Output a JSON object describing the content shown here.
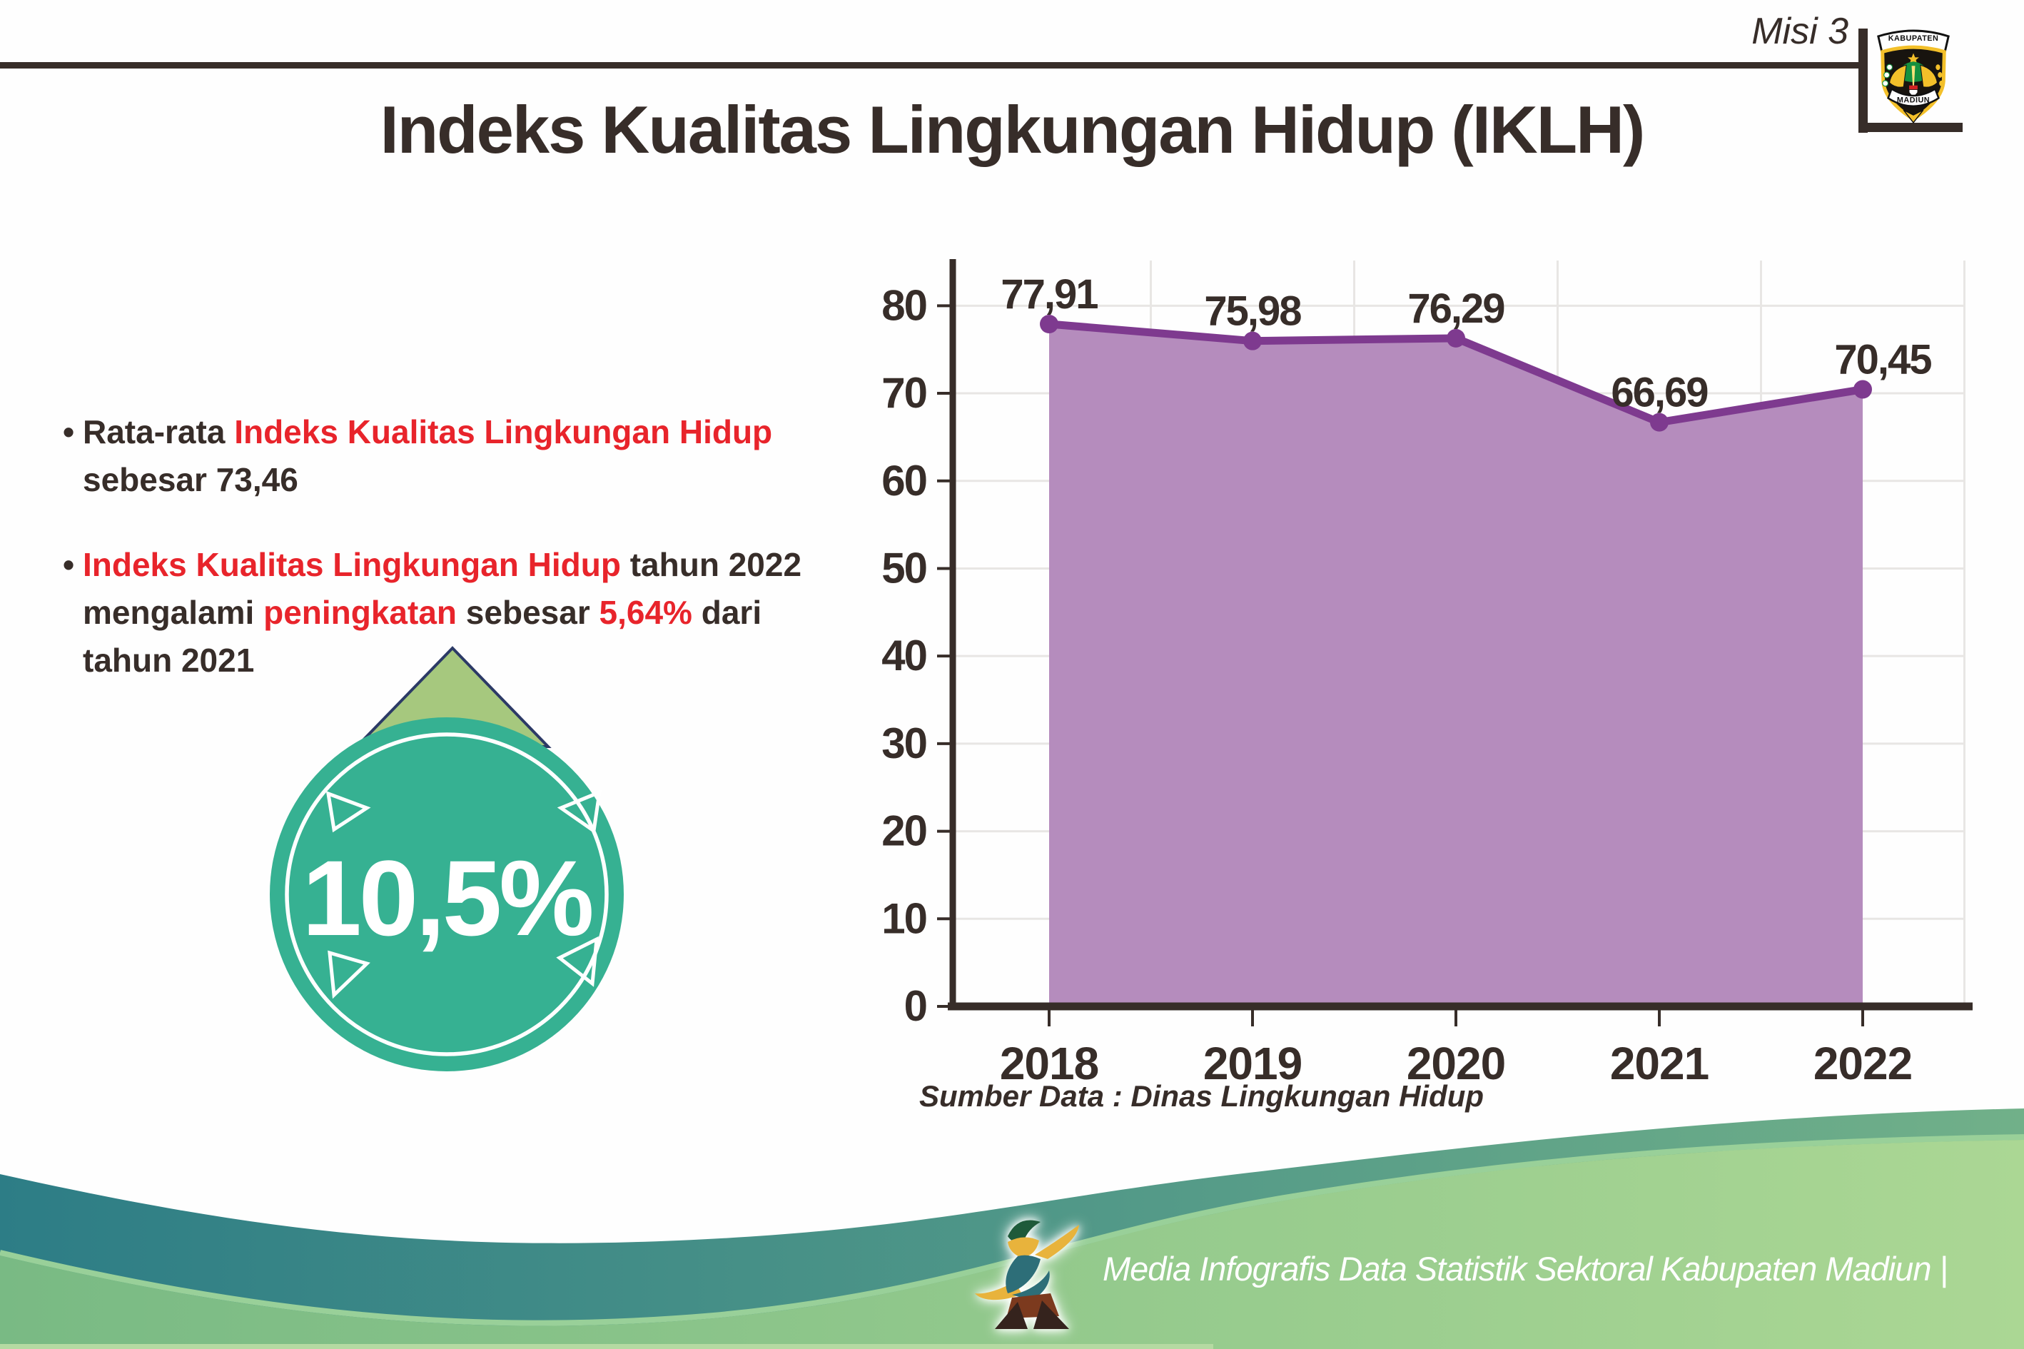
{
  "header": {
    "misi_label": "Misi 3",
    "title": "Indeks Kualitas Lingkungan Hidup (IKLH)",
    "logo": {
      "arc_top": "KABUPATEN",
      "arc_bottom": "MADIUN"
    }
  },
  "bullets": [
    {
      "lines": [
        [
          {
            "t": "Rata-rata ",
            "c": "dark"
          },
          {
            "t": "Indeks Kualitas Lingkungan Hidup",
            "c": "red"
          }
        ],
        [
          {
            "t": "sebesar 73,46",
            "c": "dark"
          }
        ]
      ]
    },
    {
      "lines": [
        [
          {
            "t": "Indeks Kualitas Lingkungan Hidup",
            "c": "red"
          },
          {
            "t": " tahun 2022",
            "c": "dark"
          }
        ],
        [
          {
            "t": "mengalami ",
            "c": "dark"
          },
          {
            "t": "peningkatan",
            "c": "red"
          },
          {
            "t": " sebesar ",
            "c": "dark"
          },
          {
            "t": "5,64%",
            "c": "red"
          },
          {
            "t": " dari",
            "c": "dark"
          }
        ],
        [
          {
            "t": "tahun 2021",
            "c": "dark"
          }
        ]
      ]
    }
  ],
  "badge": {
    "value": "10,5%"
  },
  "chart_data": {
    "type": "area",
    "categories": [
      "2018",
      "2019",
      "2020",
      "2021",
      "2022"
    ],
    "values": [
      77.91,
      75.98,
      76.29,
      66.69,
      70.45
    ],
    "labels": [
      "77,91",
      "75,98",
      "76,29",
      "66,69",
      "70,45"
    ],
    "label_dx": [
      0,
      0,
      0,
      0,
      28
    ],
    "ylim": [
      0,
      85
    ],
    "yticks": [
      0,
      10,
      20,
      30,
      40,
      50,
      60,
      70,
      80
    ],
    "grid": true,
    "legend": "none",
    "fill_color": "#b58cbd",
    "line_color": "#7e3a8f",
    "source": "Sumber Data : Dinas Lingkungan Hidup"
  },
  "footer": {
    "caption": "Media Infografis Data Statistik Sektoral Kabupaten Madiun |"
  },
  "colors": {
    "text_dark": "#372d29",
    "accent_red": "#e8242b",
    "badge_teal": "#36b192",
    "arrow_green": "#a6c87e",
    "arrow_outline": "#2c3a66",
    "area_fill": "#b58cbd",
    "line_purple": "#7e3a8f",
    "grid_gray": "#e8e6e4",
    "footer_teal_dark": "#2d7d86",
    "footer_teal_light": "#71b089",
    "footer_green_dark": "#79ba84",
    "footer_green_light": "#abd794",
    "footer_edge_light": "#99d099",
    "footer_bottom_strip": "#b5daa2"
  }
}
